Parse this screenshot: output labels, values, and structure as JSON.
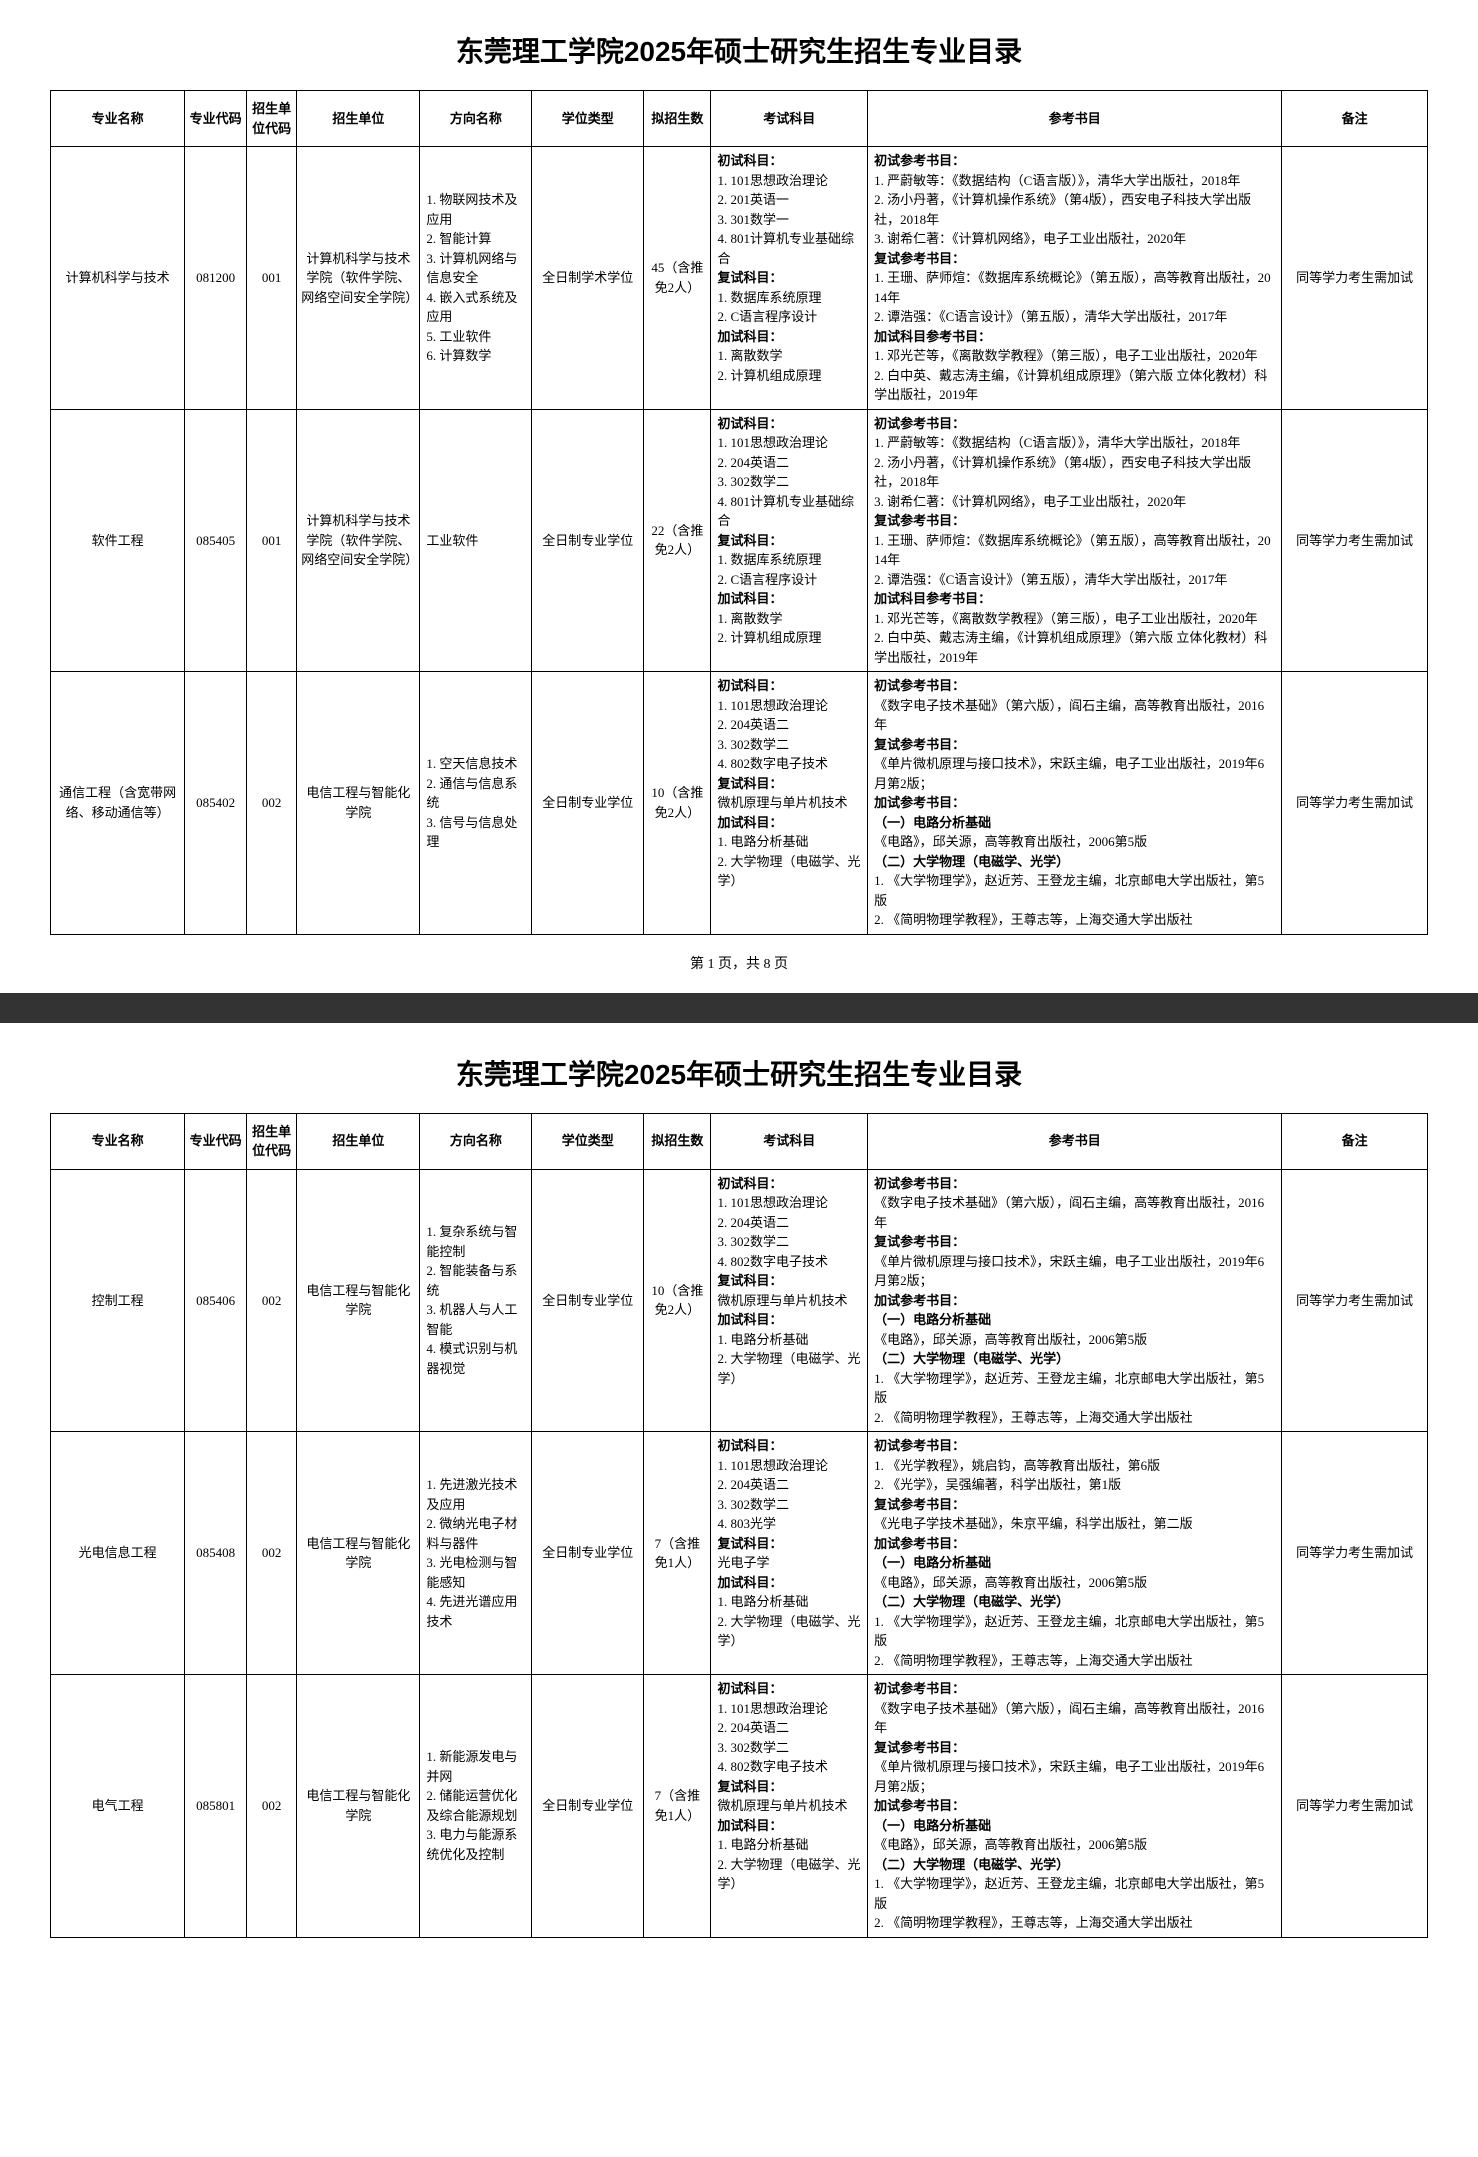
{
  "title": "东莞理工学院2025年硕士研究生招生专业目录",
  "pager": "第 1 页，共 8 页",
  "headers": {
    "major": "专业名称",
    "code": "专业代码",
    "unit": "招生单位代码",
    "dept": "招生单位",
    "direction": "方向名称",
    "degree": "学位类型",
    "plan": "拟招生数",
    "exam": "考试科目",
    "reference": "参考书目",
    "note": "备注"
  },
  "labels": {
    "prelim_subject": "初试科目：",
    "retest_subject": "复试科目：",
    "extra_subject": "加试科目：",
    "prelim_ref": "初试参考书目：",
    "retest_ref": "复试参考书目：",
    "extra_ref": "加试科目参考书目：",
    "extra_ref2": "加试参考书目：",
    "ref_a": "（一）电路分析基础",
    "ref_b": "（二）大学物理（电磁学、光学）"
  },
  "rows": [
    {
      "major": "计算机科学与技术",
      "code": "081200",
      "unit": "001",
      "dept": "计算机科学与技术学院（软件学院、网络空间安全学院）",
      "direction": "1. 物联网技术及应用\n2. 智能计算\n3. 计算机网络与信息安全\n4. 嵌入式系统及应用\n5. 工业软件\n6. 计算数学",
      "degree": "全日制学术学位",
      "plan": "45（含推免2人）",
      "exam_prelim": "1. 101思想政治理论\n2. 201英语一\n3. 301数学一\n4. 801计算机专业基础综合",
      "exam_retest": "1. 数据库系统原理\n2. C语言程序设计",
      "exam_extra": "1. 离散数学\n2. 计算机组成原理",
      "ref_prelim": "1. 严蔚敏等：《数据结构（C语言版）》，清华大学出版社，2018年\n2. 汤小丹著，《计算机操作系统》（第4版），西安电子科技大学出版社，2018年\n3. 谢希仁著：《计算机网络》，电子工业出版社，2020年",
      "ref_retest": "1. 王珊、萨师煊：《数据库系统概论》（第五版），高等教育出版社，2014年\n2. 谭浩强：《C语言设计》（第五版），清华大学出版社，2017年",
      "ref_extra": "1. 邓光芒等，《离散数学教程》（第三版），电子工业出版社，2020年\n2. 白中英、戴志涛主编，《计算机组成原理》（第六版 立体化教材）科学出版社，2019年",
      "note": "同等学力考生需加试"
    },
    {
      "major": "软件工程",
      "code": "085405",
      "unit": "001",
      "dept": "计算机科学与技术学院（软件学院、网络空间安全学院）",
      "direction": "工业软件",
      "degree": "全日制专业学位",
      "plan": "22（含推免2人）",
      "exam_prelim": "1. 101思想政治理论\n2. 204英语二\n3. 302数学二\n4. 801计算机专业基础综合",
      "exam_retest": "1. 数据库系统原理\n2. C语言程序设计",
      "exam_extra": "1. 离散数学\n2. 计算机组成原理",
      "ref_prelim": "1. 严蔚敏等：《数据结构（C语言版）》，清华大学出版社，2018年\n2. 汤小丹著，《计算机操作系统》（第4版），西安电子科技大学出版社，2018年\n3. 谢希仁著：《计算机网络》，电子工业出版社，2020年",
      "ref_retest": "1. 王珊、萨师煊：《数据库系统概论》（第五版），高等教育出版社，2014年\n2. 谭浩强：《C语言设计》（第五版），清华大学出版社，2017年",
      "ref_extra": "1. 邓光芒等，《离散数学教程》（第三版），电子工业出版社，2020年\n2. 白中英、戴志涛主编，《计算机组成原理》（第六版 立体化教材）科学出版社，2019年",
      "note": "同等学力考生需加试"
    },
    {
      "major": "通信工程（含宽带网络、移动通信等）",
      "code": "085402",
      "unit": "002",
      "dept": "电信工程与智能化学院",
      "direction": "1. 空天信息技术\n2. 通信与信息系统\n3. 信号与信息处理",
      "degree": "全日制专业学位",
      "plan": "10（含推免2人）",
      "exam_prelim": "1. 101思想政治理论\n2. 204英语二\n3. 302数学二\n4. 802数字电子技术",
      "exam_retest": "微机原理与单片机技术",
      "exam_extra": "1. 电路分析基础\n2. 大学物理（电磁学、光学）",
      "ref_prelim": "《数字电子技术基础》（第六版），阎石主编，高等教育出版社，2016年",
      "ref_retest": "《单片微机原理与接口技术》，宋跃主编，电子工业出版社，2019年6月第2版；",
      "ref_extra_a": "《电路》，邱关源，高等教育出版社，2006第5版",
      "ref_extra_b": "1. 《大学物理学》，赵近芳、王登龙主编，北京邮电大学出版社，第5版\n2. 《简明物理学教程》，王尊志等，上海交通大学出版社",
      "note": "同等学力考生需加试"
    },
    {
      "major": "控制工程",
      "code": "085406",
      "unit": "002",
      "dept": "电信工程与智能化学院",
      "direction": "1. 复杂系统与智能控制\n2. 智能装备与系统\n3. 机器人与人工智能\n4. 模式识别与机器视觉",
      "degree": "全日制专业学位",
      "plan": "10（含推免2人）",
      "exam_prelim": "1. 101思想政治理论\n2. 204英语二\n3. 302数学二\n4. 802数字电子技术",
      "exam_retest": "微机原理与单片机技术",
      "exam_extra": "1. 电路分析基础\n2. 大学物理（电磁学、光学）",
      "ref_prelim": "《数字电子技术基础》（第六版），阎石主编，高等教育出版社，2016年",
      "ref_retest": "《单片微机原理与接口技术》，宋跃主编，电子工业出版社，2019年6月第2版；",
      "ref_extra_a": "《电路》，邱关源，高等教育出版社，2006第5版",
      "ref_extra_b": "1. 《大学物理学》，赵近芳、王登龙主编，北京邮电大学出版社，第5版\n2. 《简明物理学教程》，王尊志等，上海交通大学出版社",
      "note": "同等学力考生需加试"
    },
    {
      "major": "光电信息工程",
      "code": "085408",
      "unit": "002",
      "dept": "电信工程与智能化学院",
      "direction": "1. 先进激光技术及应用\n2. 微纳光电子材料与器件\n3. 光电检测与智能感知\n4. 先进光谱应用技术",
      "degree": "全日制专业学位",
      "plan": "7（含推免1人）",
      "exam_prelim": "1. 101思想政治理论\n2. 204英语二\n3. 302数学二\n4. 803光学",
      "exam_retest": "光电子学",
      "exam_extra": "1. 电路分析基础\n2. 大学物理（电磁学、光学）",
      "ref_prelim": "1. 《光学教程》，姚启钧，高等教育出版社，第6版\n2. 《光学》，吴强编著，科学出版社，第1版",
      "ref_retest": "《光电子学技术基础》，朱京平编，科学出版社，第二版",
      "ref_extra_a": "《电路》，邱关源，高等教育出版社，2006第5版",
      "ref_extra_b": "1. 《大学物理学》，赵近芳、王登龙主编，北京邮电大学出版社，第5版\n2. 《简明物理学教程》，王尊志等，上海交通大学出版社",
      "note": "同等学力考生需加试"
    },
    {
      "major": "电气工程",
      "code": "085801",
      "unit": "002",
      "dept": "电信工程与智能化学院",
      "direction": "1. 新能源发电与并网\n2. 储能运营优化及综合能源规划\n3. 电力与能源系统优化及控制",
      "degree": "全日制专业学位",
      "plan": "7（含推免1人）",
      "exam_prelim": "1. 101思想政治理论\n2. 204英语二\n3. 302数学二\n4. 802数字电子技术",
      "exam_retest": "微机原理与单片机技术",
      "exam_extra": "1. 电路分析基础\n2. 大学物理（电磁学、光学）",
      "ref_prelim": "《数字电子技术基础》（第六版），阎石主编，高等教育出版社，2016年",
      "ref_retest": "《单片微机原理与接口技术》，宋跃主编，电子工业出版社，2019年6月第2版；",
      "ref_extra_a": "《电路》，邱关源，高等教育出版社，2006第5版",
      "ref_extra_b": "1. 《大学物理学》，赵近芳、王登龙主编，北京邮电大学出版社，第5版\n2. 《简明物理学教程》，王尊志等，上海交通大学出版社",
      "note": "同等学力考生需加试"
    }
  ]
}
